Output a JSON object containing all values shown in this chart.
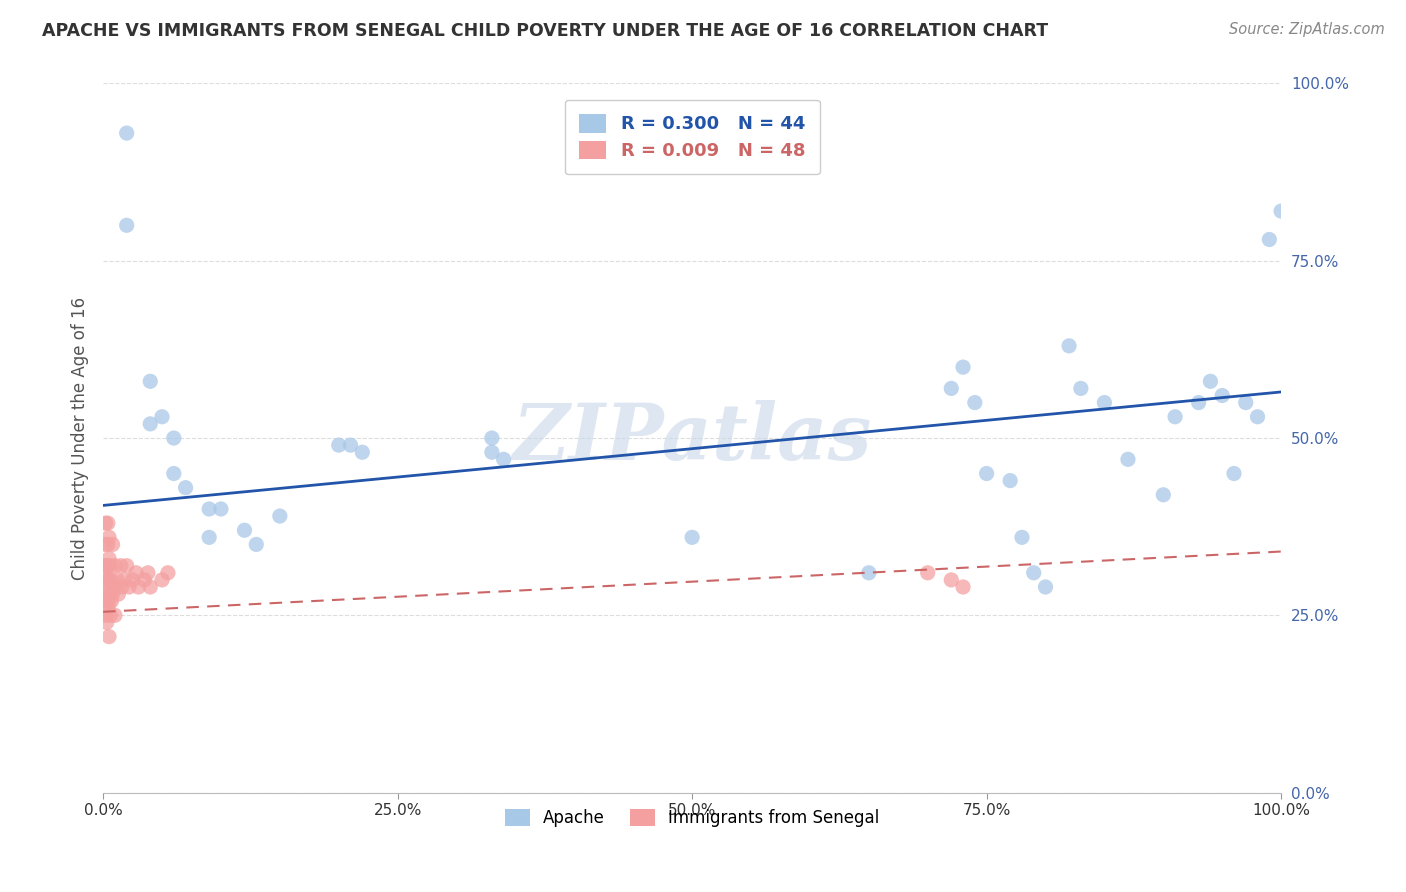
{
  "title": "APACHE VS IMMIGRANTS FROM SENEGAL CHILD POVERTY UNDER THE AGE OF 16 CORRELATION CHART",
  "source": "Source: ZipAtlas.com",
  "ylabel": "Child Poverty Under the Age of 16",
  "xlabel": "",
  "watermark": "ZIPatlas",
  "apache_R": 0.3,
  "apache_N": 44,
  "senegal_R": 0.009,
  "senegal_N": 48,
  "apache_color": "#a8c8e8",
  "senegal_color": "#f4a0a0",
  "apache_line_color": "#2255aa",
  "senegal_line_color": "#cc6666",
  "legend_apache": "Apache",
  "legend_senegal": "Immigrants from Senegal",
  "apache_x": [
    0.02,
    0.02,
    0.04,
    0.04,
    0.05,
    0.06,
    0.06,
    0.07,
    0.09,
    0.09,
    0.1,
    0.12,
    0.13,
    0.15,
    0.2,
    0.21,
    0.22,
    0.33,
    0.33,
    0.34,
    0.5,
    0.65,
    0.72,
    0.73,
    0.74,
    0.75,
    0.77,
    0.82,
    0.83,
    0.85,
    0.87,
    0.9,
    0.91,
    0.93,
    0.94,
    0.95,
    0.96,
    0.97,
    0.98,
    0.99,
    1.0,
    0.78,
    0.79,
    0.8
  ],
  "apache_y": [
    0.93,
    0.8,
    0.58,
    0.52,
    0.53,
    0.5,
    0.45,
    0.43,
    0.4,
    0.36,
    0.4,
    0.37,
    0.35,
    0.39,
    0.49,
    0.49,
    0.48,
    0.5,
    0.48,
    0.47,
    0.36,
    0.31,
    0.57,
    0.6,
    0.55,
    0.45,
    0.44,
    0.63,
    0.57,
    0.55,
    0.47,
    0.42,
    0.53,
    0.55,
    0.58,
    0.56,
    0.45,
    0.55,
    0.53,
    0.78,
    0.82,
    0.36,
    0.31,
    0.29
  ],
  "senegal_x": [
    0.002,
    0.002,
    0.002,
    0.002,
    0.002,
    0.002,
    0.003,
    0.003,
    0.003,
    0.003,
    0.004,
    0.004,
    0.004,
    0.004,
    0.004,
    0.005,
    0.005,
    0.005,
    0.005,
    0.005,
    0.006,
    0.006,
    0.006,
    0.007,
    0.007,
    0.008,
    0.008,
    0.01,
    0.01,
    0.01,
    0.012,
    0.013,
    0.015,
    0.016,
    0.018,
    0.02,
    0.022,
    0.025,
    0.028,
    0.03,
    0.035,
    0.038,
    0.04,
    0.05,
    0.055,
    0.7,
    0.72,
    0.73
  ],
  "senegal_y": [
    0.38,
    0.35,
    0.32,
    0.3,
    0.28,
    0.25,
    0.32,
    0.29,
    0.27,
    0.24,
    0.38,
    0.35,
    0.32,
    0.3,
    0.26,
    0.36,
    0.33,
    0.3,
    0.27,
    0.22,
    0.32,
    0.28,
    0.25,
    0.3,
    0.27,
    0.35,
    0.28,
    0.32,
    0.29,
    0.25,
    0.3,
    0.28,
    0.32,
    0.29,
    0.3,
    0.32,
    0.29,
    0.3,
    0.31,
    0.29,
    0.3,
    0.31,
    0.29,
    0.3,
    0.31,
    0.31,
    0.3,
    0.29
  ],
  "xlim": [
    0.0,
    1.0
  ],
  "ylim": [
    0.0,
    1.0
  ],
  "yticks": [
    0.0,
    0.25,
    0.5,
    0.75,
    1.0
  ],
  "yticklabels": [
    "0.0%",
    "25.0%",
    "50.0%",
    "75.0%",
    "100.0%"
  ],
  "xticks": [
    0.0,
    0.25,
    0.5,
    0.75,
    1.0
  ],
  "xticklabels": [
    "0.0%",
    "25.0%",
    "50.0%",
    "75.0%",
    "100.0%"
  ],
  "background_color": "#ffffff",
  "grid_color": "#dddddd",
  "apache_line_start_y": 0.405,
  "apache_line_end_y": 0.565,
  "senegal_line_start_y": 0.255,
  "senegal_line_end_y": 0.34
}
